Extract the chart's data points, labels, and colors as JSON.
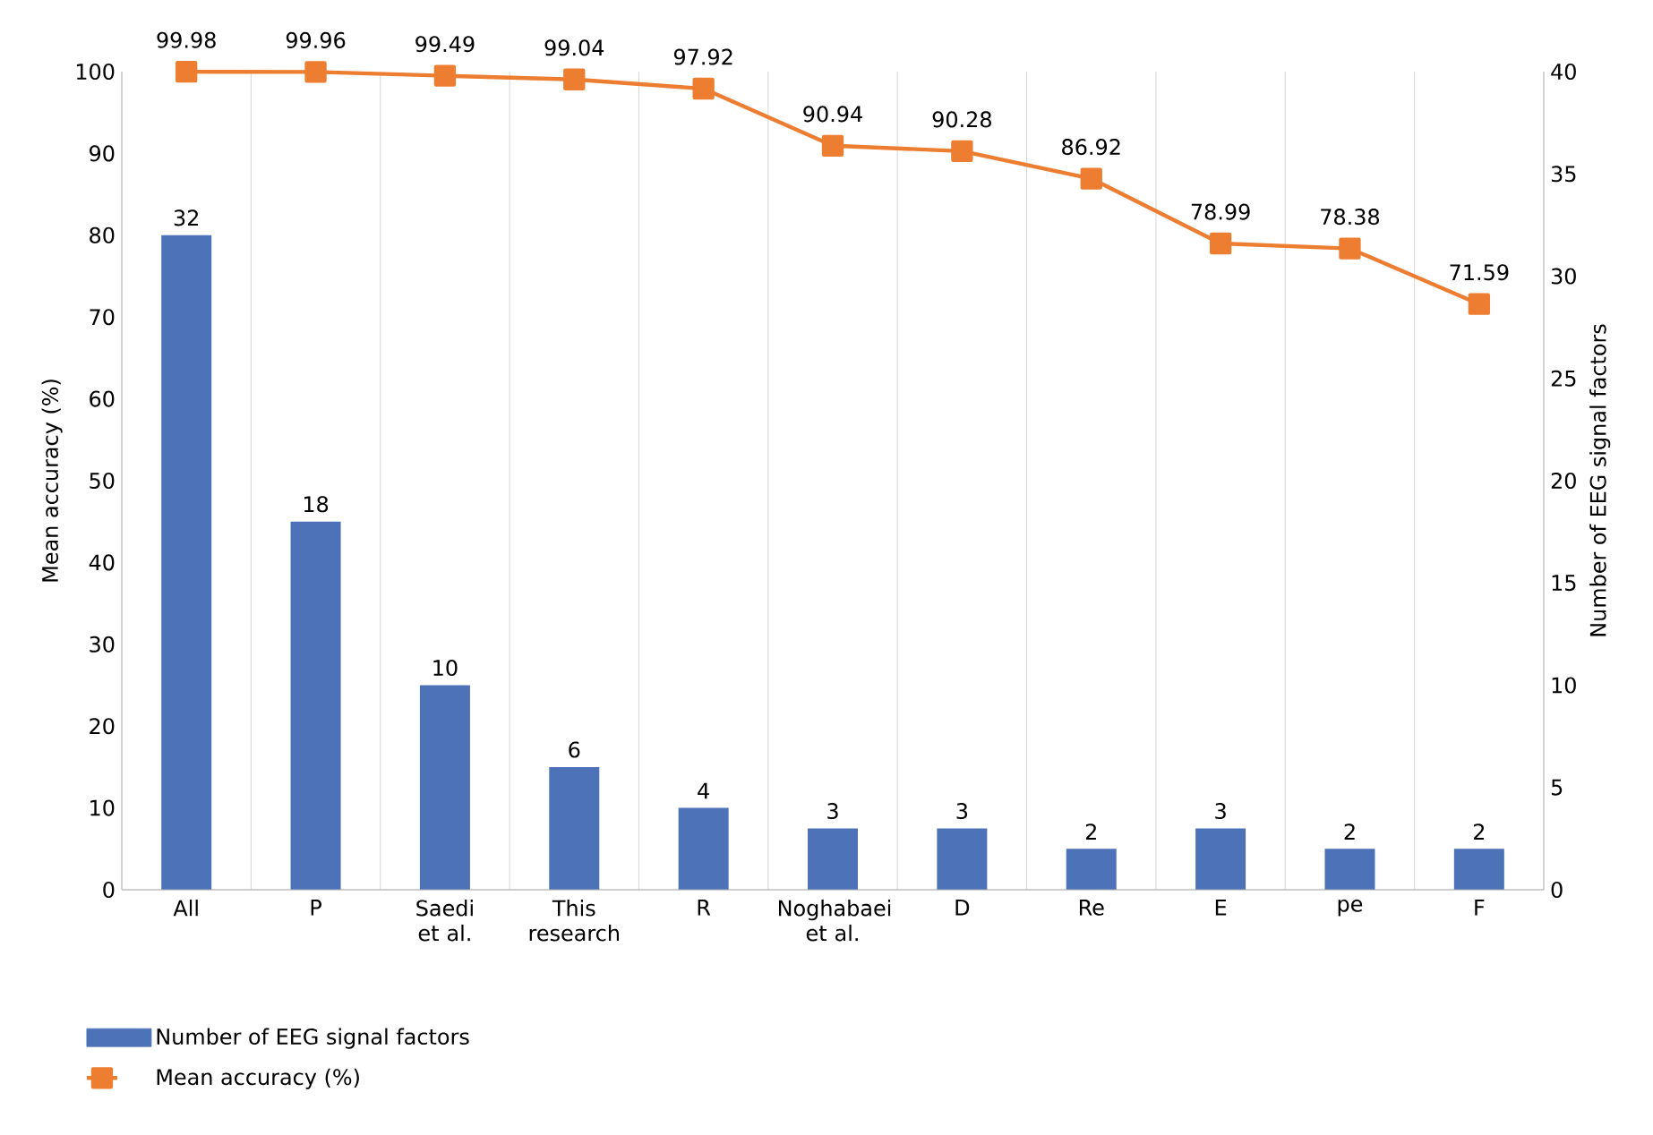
{
  "chart_data": {
    "type": "bar",
    "ylabel": "Mean accuracy (%)",
    "y2label": "Number of EEG signal factors",
    "categories": [
      "All",
      "P",
      "Saedi et al.",
      "This research",
      "R",
      "Noghabaei et al.",
      "D",
      "Re",
      "E",
      "pe",
      "F"
    ],
    "series": [
      {
        "name": "Number of EEG signal factors",
        "axis": "y2",
        "color": "#4e72b8",
        "values": [
          32,
          18,
          10,
          6,
          4,
          3,
          3,
          2,
          3,
          2,
          2
        ]
      },
      {
        "name": "Mean accuracy (%)",
        "type": "line",
        "axis": "y",
        "color": "#ed7d31",
        "marker": "square",
        "line_style": "solid",
        "values": [
          99.98,
          99.96,
          99.49,
          99.04,
          97.92,
          90.94,
          90.28,
          86.92,
          78.99,
          78.38,
          71.59
        ]
      }
    ],
    "ylim": [
      0,
      100
    ],
    "yticks": [
      0,
      10,
      20,
      30,
      40,
      50,
      60,
      70,
      80,
      90,
      100
    ],
    "y2lim": [
      0,
      40
    ],
    "y2ticks": [
      0,
      5,
      10,
      15,
      20,
      25,
      30,
      35,
      40
    ],
    "data_labels": true,
    "grid": "x",
    "legend": "bottom left"
  }
}
